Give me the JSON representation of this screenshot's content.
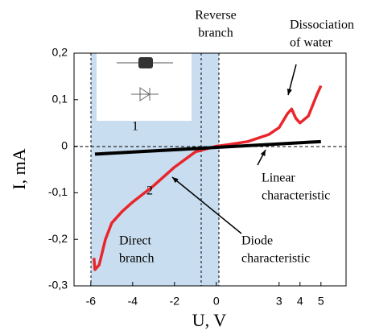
{
  "chart_data": {
    "type": "line",
    "x_label": "U, V",
    "y_label": "I, mA",
    "xlim": [
      -6.8,
      6.2
    ],
    "xticks": [
      -6,
      -4,
      -2,
      0,
      3,
      4,
      5
    ],
    "ylim": [
      -0.3,
      0.2
    ],
    "yticks": [
      {
        "value": -0.3,
        "label": "-0,3"
      },
      {
        "value": -0.2,
        "label": "-0,2"
      },
      {
        "value": -0.1,
        "label": "-0,1"
      },
      {
        "value": 0,
        "label": "0"
      },
      {
        "value": 0.1,
        "label": "0,1"
      },
      {
        "value": 0.2,
        "label": "0,2"
      }
    ],
    "series": [
      {
        "name": "Diode characteristic",
        "color": "#e8262b",
        "x": [
          -5.85,
          -5.8,
          -5.6,
          -5.3,
          -5,
          -4.5,
          -4,
          -3,
          -2,
          -1,
          0,
          0.5,
          1.5,
          2.5,
          3,
          3.4,
          3.6,
          3.8,
          4,
          4.4,
          4.8,
          5
        ],
        "values": [
          -0.24,
          -0.265,
          -0.255,
          -0.2,
          -0.165,
          -0.14,
          -0.12,
          -0.085,
          -0.045,
          -0.012,
          0,
          0.003,
          0.01,
          0.025,
          0.04,
          0.07,
          0.08,
          0.06,
          0.05,
          0.065,
          0.11,
          0.13
        ]
      },
      {
        "name": "Linear characteristic",
        "color": "#000000",
        "x": [
          -5.8,
          5
        ],
        "values": [
          -0.017,
          0.01
        ]
      }
    ],
    "annotations": [
      {
        "lines": [
          "Reverse",
          "branch"
        ]
      },
      {
        "lines": [
          "Dissociation",
          "of water"
        ]
      },
      {
        "lines": [
          "Linear",
          "characteristic"
        ]
      },
      {
        "lines": [
          "Diode",
          "characteristic"
        ]
      },
      {
        "lines": [
          "Direct",
          "branch"
        ]
      },
      {
        "lines": [
          "1"
        ]
      },
      {
        "lines": [
          "2"
        ]
      }
    ]
  }
}
